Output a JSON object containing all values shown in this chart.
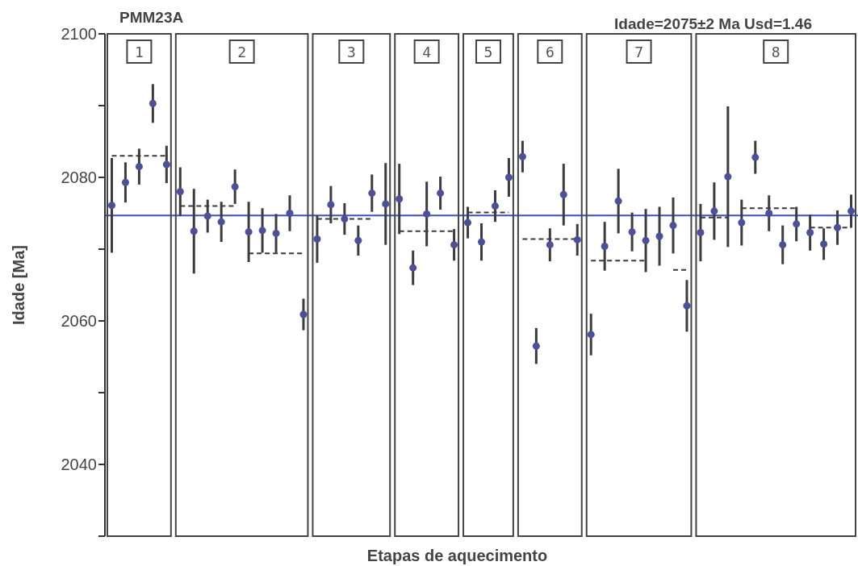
{
  "chart_data": {
    "type": "scatter",
    "title": "PMM23A",
    "xlabel": "Etapas de aquecimento",
    "ylabel": "Idade [Ma]",
    "annotations": [
      "Idade=2075±2 Ma  Usd=1.46",
      "1",
      "2",
      "3",
      "4",
      "5",
      "6",
      "7",
      "8"
    ],
    "categories": [
      null,
      null,
      null,
      null,
      null,
      null,
      null,
      null,
      null,
      null,
      null,
      null,
      null,
      null,
      null,
      null,
      null,
      null,
      null,
      null,
      null,
      null,
      null,
      null,
      null,
      null,
      null,
      null,
      null,
      null,
      null,
      null,
      null,
      null,
      null,
      null,
      null,
      null,
      null,
      null,
      null,
      null,
      null,
      null,
      null,
      null,
      null,
      null,
      null,
      null,
      null,
      null,
      null,
      null,
      null
    ],
    "ylim": [
      2030,
      2100
    ],
    "yticks": [
      {
        "value": 2030,
        "label": null
      },
      2040,
      {
        "value": 2050,
        "label": null
      },
      2060,
      {
        "value": 2070,
        "label": null
      },
      2080,
      {
        "value": 2090,
        "label": null
      },
      2100
    ],
    "ref_lines": [
      {
        "axis": "y",
        "value": 2074.7,
        "color": "#3a4fc8"
      }
    ],
    "series": [
      {
        "marker": "circle",
        "color": "#4b4f9c",
        "values": [
          2076.1,
          2079.3,
          2081.5,
          2090.3,
          2081.8,
          null,
          null,
          null,
          null,
          null,
          null,
          null,
          null,
          null,
          null,
          null,
          null,
          null,
          null,
          null,
          null,
          null,
          null,
          null,
          null,
          null,
          null,
          null,
          null,
          null,
          null,
          null,
          null,
          null,
          null,
          null,
          null,
          null,
          null,
          null,
          null,
          null,
          null,
          null,
          null,
          null,
          null,
          null,
          null,
          null,
          null,
          null,
          null,
          null,
          null
        ],
        "errors": [
          6.6,
          2.8,
          2.5,
          2.7,
          2.6,
          null,
          null,
          null,
          null,
          null,
          null,
          null,
          null,
          null,
          null,
          null,
          null,
          null,
          null,
          null,
          null,
          null,
          null,
          null,
          null,
          null,
          null,
          null,
          null,
          null,
          null,
          null,
          null,
          null,
          null,
          null,
          null,
          null,
          null,
          null,
          null,
          null,
          null,
          null,
          null,
          null,
          null,
          null,
          null,
          null,
          null,
          null,
          null,
          null,
          null
        ]
      },
      {
        "marker": "circle",
        "color": "#4b4f9c",
        "values": [
          null,
          null,
          null,
          null,
          null,
          2078.0,
          2072.5,
          2074.6,
          2073.8,
          2078.7,
          2072.4,
          2072.6,
          2072.2,
          2075.0,
          2060.9,
          null,
          null,
          null,
          null,
          null,
          null,
          null,
          null,
          null,
          null,
          null,
          null,
          null,
          null,
          null,
          null,
          null,
          null,
          null,
          null,
          null,
          null,
          null,
          null,
          null,
          null,
          null,
          null,
          null,
          null,
          null,
          null,
          null,
          null,
          null,
          null,
          null,
          null,
          null,
          null
        ],
        "errors": [
          null,
          null,
          null,
          null,
          null,
          3.4,
          5.9,
          2.3,
          2.8,
          2.4,
          4.2,
          3.1,
          2.7,
          2.5,
          2.2,
          null,
          null,
          null,
          null,
          null,
          null,
          null,
          null,
          null,
          null,
          null,
          null,
          null,
          null,
          null,
          null,
          null,
          null,
          null,
          null,
          null,
          null,
          null,
          null,
          null,
          null,
          null,
          null,
          null,
          null,
          null,
          null,
          null,
          null,
          null,
          null,
          null,
          null,
          null,
          null
        ]
      },
      {
        "marker": "circle",
        "color": "#4b4f9c",
        "values": [
          null,
          null,
          null,
          null,
          null,
          null,
          null,
          null,
          null,
          null,
          null,
          null,
          null,
          null,
          null,
          2071.4,
          2076.2,
          2074.2,
          2071.2,
          2077.8,
          2076.3,
          null,
          null,
          null,
          null,
          null,
          null,
          null,
          null,
          null,
          null,
          null,
          null,
          null,
          null,
          null,
          null,
          null,
          null,
          null,
          null,
          null,
          null,
          null,
          null,
          null,
          null,
          null,
          null,
          null,
          null,
          null,
          null,
          null,
          null
        ],
        "errors": [
          null,
          null,
          null,
          null,
          null,
          null,
          null,
          null,
          null,
          null,
          null,
          null,
          null,
          null,
          null,
          3.3,
          2.6,
          2.2,
          2.1,
          2.6,
          5.7,
          null,
          null,
          null,
          null,
          null,
          null,
          null,
          null,
          null,
          null,
          null,
          null,
          null,
          null,
          null,
          null,
          null,
          null,
          null,
          null,
          null,
          null,
          null,
          null,
          null,
          null,
          null,
          null,
          null,
          null,
          null,
          null,
          null,
          null
        ]
      },
      {
        "marker": "circle",
        "color": "#4b4f9c",
        "values": [
          null,
          null,
          null,
          null,
          null,
          null,
          null,
          null,
          null,
          null,
          null,
          null,
          null,
          null,
          null,
          null,
          null,
          null,
          null,
          null,
          null,
          2077.0,
          2067.4,
          2074.9,
          2077.8,
          2070.6,
          null,
          null,
          null,
          null,
          null,
          null,
          null,
          null,
          null,
          null,
          null,
          null,
          null,
          null,
          null,
          null,
          null,
          null,
          null,
          null,
          null,
          null,
          null,
          null,
          null,
          null,
          null,
          null,
          null
        ],
        "errors": [
          null,
          null,
          null,
          null,
          null,
          null,
          null,
          null,
          null,
          null,
          null,
          null,
          null,
          null,
          null,
          null,
          null,
          null,
          null,
          null,
          null,
          4.9,
          2.4,
          4.5,
          2.3,
          2.2,
          null,
          null,
          null,
          null,
          null,
          null,
          null,
          null,
          null,
          null,
          null,
          null,
          null,
          null,
          null,
          null,
          null,
          null,
          null,
          null,
          null,
          null,
          null,
          null,
          null,
          null,
          null,
          null,
          null
        ]
      },
      {
        "marker": "circle",
        "color": "#4b4f9c",
        "values": [
          null,
          null,
          null,
          null,
          null,
          null,
          null,
          null,
          null,
          null,
          null,
          null,
          null,
          null,
          null,
          null,
          null,
          null,
          null,
          null,
          null,
          null,
          null,
          null,
          null,
          null,
          2073.7,
          2071.0,
          2076.0,
          2080.0,
          null,
          null,
          null,
          null,
          null,
          null,
          null,
          null,
          null,
          null,
          null,
          null,
          null,
          null,
          null,
          null,
          null,
          null,
          null,
          null,
          null,
          null,
          null,
          null,
          null
        ],
        "errors": [
          null,
          null,
          null,
          null,
          null,
          null,
          null,
          null,
          null,
          null,
          null,
          null,
          null,
          null,
          null,
          null,
          null,
          null,
          null,
          null,
          null,
          null,
          null,
          null,
          null,
          null,
          2.2,
          2.6,
          2.2,
          2.7,
          null,
          null,
          null,
          null,
          null,
          null,
          null,
          null,
          null,
          null,
          null,
          null,
          null,
          null,
          null,
          null,
          null,
          null,
          null,
          null,
          null,
          null,
          null,
          null,
          null
        ]
      },
      {
        "marker": "circle",
        "color": "#4b4f9c",
        "values": [
          null,
          null,
          null,
          null,
          null,
          null,
          null,
          null,
          null,
          null,
          null,
          null,
          null,
          null,
          null,
          null,
          null,
          null,
          null,
          null,
          null,
          null,
          null,
          null,
          null,
          null,
          null,
          null,
          null,
          null,
          2082.9,
          2056.5,
          2070.6,
          2077.6,
          2071.3,
          null,
          null,
          null,
          null,
          null,
          null,
          null,
          null,
          null,
          null,
          null,
          null,
          null,
          null,
          null,
          null,
          null,
          null,
          null,
          null
        ],
        "errors": [
          null,
          null,
          null,
          null,
          null,
          null,
          null,
          null,
          null,
          null,
          null,
          null,
          null,
          null,
          null,
          null,
          null,
          null,
          null,
          null,
          null,
          null,
          null,
          null,
          null,
          null,
          null,
          null,
          null,
          null,
          2.2,
          2.5,
          2.3,
          4.3,
          2.2,
          null,
          null,
          null,
          null,
          null,
          null,
          null,
          null,
          null,
          null,
          null,
          null,
          null,
          null,
          null,
          null,
          null,
          null,
          null,
          null
        ]
      },
      {
        "marker": "circle",
        "color": "#4b4f9c",
        "values": [
          null,
          null,
          null,
          null,
          null,
          null,
          null,
          null,
          null,
          null,
          null,
          null,
          null,
          null,
          null,
          null,
          null,
          null,
          null,
          null,
          null,
          null,
          null,
          null,
          null,
          null,
          null,
          null,
          null,
          null,
          null,
          null,
          null,
          null,
          null,
          2058.1,
          2070.4,
          2076.7,
          2072.4,
          2071.2,
          2071.8,
          2073.3,
          2062.1,
          null,
          null,
          null,
          null,
          null,
          null,
          null,
          null,
          null,
          null,
          null,
          null
        ],
        "errors": [
          null,
          null,
          null,
          null,
          null,
          null,
          null,
          null,
          null,
          null,
          null,
          null,
          null,
          null,
          null,
          null,
          null,
          null,
          null,
          null,
          null,
          null,
          null,
          null,
          null,
          null,
          null,
          null,
          null,
          null,
          null,
          null,
          null,
          null,
          null,
          2.9,
          3.4,
          4.5,
          2.7,
          4.4,
          4.1,
          3.9,
          3.6,
          null,
          null,
          null,
          null,
          null,
          null,
          null,
          null,
          null,
          null,
          null,
          null
        ]
      },
      {
        "marker": "circle",
        "color": "#4b4f9c",
        "values": [
          null,
          null,
          null,
          null,
          null,
          null,
          null,
          null,
          null,
          null,
          null,
          null,
          null,
          null,
          null,
          null,
          null,
          null,
          null,
          null,
          null,
          null,
          null,
          null,
          null,
          null,
          null,
          null,
          null,
          null,
          null,
          null,
          null,
          null,
          null,
          null,
          null,
          null,
          null,
          null,
          null,
          null,
          null,
          2072.3,
          2075.3,
          2080.1,
          2073.7,
          2082.8,
          2075.0,
          2070.6,
          2073.5,
          2072.3,
          2070.7,
          2073.0,
          2075.3
        ],
        "errors": [
          null,
          null,
          null,
          null,
          null,
          null,
          null,
          null,
          null,
          null,
          null,
          null,
          null,
          null,
          null,
          null,
          null,
          null,
          null,
          null,
          null,
          null,
          null,
          null,
          null,
          null,
          null,
          null,
          null,
          null,
          null,
          null,
          null,
          null,
          null,
          null,
          null,
          null,
          null,
          null,
          null,
          null,
          null,
          4.0,
          4.0,
          9.8,
          3.2,
          2.3,
          2.5,
          2.7,
          2.4,
          2.5,
          2.2,
          2.4,
          2.3
        ]
      },
      {
        "type": "line",
        "line_style": "dashed",
        "color": "#3a3a3a",
        "values": [
          2083.0,
          2083.0,
          2083.0,
          2083.0,
          2083.0,
          null,
          null,
          null,
          null,
          null,
          2069.4,
          2069.4,
          2069.4,
          2069.4,
          2069.4,
          null,
          null,
          null,
          null,
          null,
          null,
          2072.5,
          2072.5,
          2072.5,
          2072.5,
          2072.5,
          null,
          null,
          null,
          null,
          2071.4,
          2071.4,
          2071.4,
          2071.4,
          2071.4,
          null,
          null,
          null,
          null,
          null,
          null,
          2067.1,
          2067.1,
          null,
          null,
          null,
          2075.7,
          2075.7,
          2075.7,
          2075.7,
          2075.7,
          null,
          null,
          null,
          null
        ]
      },
      {
        "type": "line",
        "line_style": "dashed",
        "color": "#3a3a3a",
        "values": [
          null,
          null,
          null,
          null,
          null,
          2076.0,
          2076.0,
          2076.0,
          2076.0,
          2076.0,
          null,
          null,
          null,
          null,
          null,
          2074.2,
          2074.2,
          2074.2,
          2074.2,
          2074.2,
          null,
          null,
          null,
          null,
          null,
          null,
          2075.1,
          2075.1,
          2075.1,
          2075.1,
          null,
          null,
          null,
          null,
          null,
          2068.4,
          2068.4,
          2068.4,
          2068.4,
          2068.4,
          null,
          null,
          null,
          2074.4,
          2074.4,
          2074.4,
          null,
          null,
          null,
          null,
          null,
          2073.0,
          2073.0,
          2073.0,
          2073.0
        ]
      }
    ]
  }
}
